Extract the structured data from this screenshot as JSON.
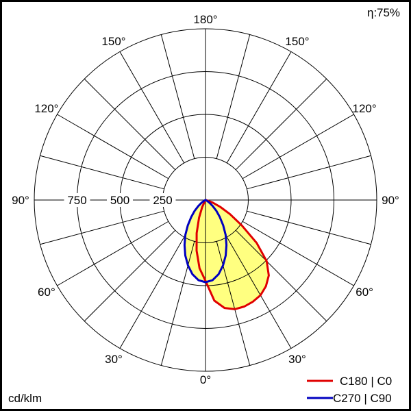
{
  "chart_data": {
    "type": "polar",
    "efficiency_label": "η:",
    "efficiency_value": "75%",
    "unit_label": "cd/klm",
    "radial_ticks": [
      250,
      500,
      750
    ],
    "radial_tick_labels": [
      "250",
      "500",
      "750"
    ],
    "radial_max": 1000,
    "angle_step_deg": 15,
    "angle_labels": [
      {
        "angle": 180,
        "label": "180°"
      },
      {
        "angle": 150,
        "label": "150°"
      },
      {
        "angle": 120,
        "label": "120°"
      },
      {
        "angle": 90,
        "label": "90°"
      },
      {
        "angle": 60,
        "label": "60°"
      },
      {
        "angle": 30,
        "label": "30°"
      },
      {
        "angle": 0,
        "label": "0°"
      }
    ],
    "gamma": [
      0,
      5,
      10,
      15,
      20,
      25,
      30,
      35,
      40,
      45,
      50,
      55,
      60,
      65,
      70,
      75,
      80,
      85,
      90
    ],
    "series": [
      {
        "name": "C180 | C0",
        "color": "#e00000",
        "left_plane": "C180",
        "right_plane": "C0",
        "left_values": [
          472,
          400,
          300,
          200,
          110,
          45,
          10,
          0,
          0,
          0,
          0,
          0,
          0,
          0,
          0,
          0,
          0,
          0,
          0
        ],
        "right_values": [
          472,
          590,
          640,
          660,
          662,
          655,
          642,
          615,
          575,
          505,
          390,
          260,
          165,
          95,
          45,
          15,
          0,
          0,
          0
        ]
      },
      {
        "name": "C270 | C90",
        "color": "#0000c0",
        "left_plane": "C270",
        "right_plane": "C90",
        "left_values": [
          480,
          470,
          440,
          395,
          345,
          290,
          235,
          180,
          130,
          90,
          55,
          30,
          12,
          3,
          0,
          0,
          0,
          0,
          0
        ],
        "right_values": [
          480,
          470,
          440,
          395,
          345,
          290,
          235,
          180,
          130,
          90,
          55,
          30,
          12,
          3,
          0,
          0,
          0,
          0,
          0
        ]
      }
    ],
    "fill_color": "#ffff80",
    "legend_placement": "bottom-right"
  }
}
